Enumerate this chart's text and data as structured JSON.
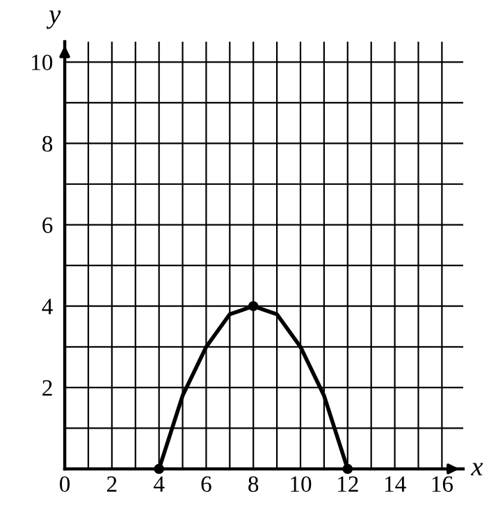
{
  "chart_data": {
    "type": "line",
    "xlabel": "x",
    "ylabel": "y",
    "xlim": [
      0,
      16.9
    ],
    "ylim": [
      0,
      10.5
    ],
    "xticks": [
      0,
      {
        "value": 1,
        "label": null
      },
      2,
      {
        "value": 3,
        "label": null
      },
      4,
      {
        "value": 5,
        "label": null
      },
      6,
      {
        "value": 7,
        "label": null
      },
      8,
      {
        "value": 9,
        "label": null
      },
      10,
      {
        "value": 11,
        "label": null
      },
      12,
      {
        "value": 13,
        "label": null
      },
      14,
      {
        "value": 15,
        "label": null
      },
      16
    ],
    "yticks": [
      {
        "value": 1,
        "label": null
      },
      2,
      {
        "value": 3,
        "label": null
      },
      4,
      {
        "value": 5,
        "label": null
      },
      6,
      {
        "value": 7,
        "label": null
      },
      8,
      {
        "value": 9,
        "label": null
      },
      10
    ],
    "grid": true,
    "series": [
      {
        "color": "#000000",
        "marker": "none",
        "x": [
          4,
          4.5,
          5,
          5.5,
          6,
          6.5,
          7,
          7.5,
          8,
          8.5,
          9,
          9.5,
          10,
          10.5,
          11,
          11.5,
          12
        ],
        "values": [
          0,
          0.9,
          1.8,
          2.4,
          3,
          3.4,
          3.8,
          3.9,
          4,
          3.9,
          3.8,
          3.4,
          3,
          2.4,
          1.8,
          0.9,
          0
        ]
      },
      {
        "type": "scatter",
        "color": "#000000",
        "marker": "circle",
        "x": [
          4,
          8,
          12
        ],
        "values": [
          0,
          4,
          0
        ]
      }
    ]
  }
}
